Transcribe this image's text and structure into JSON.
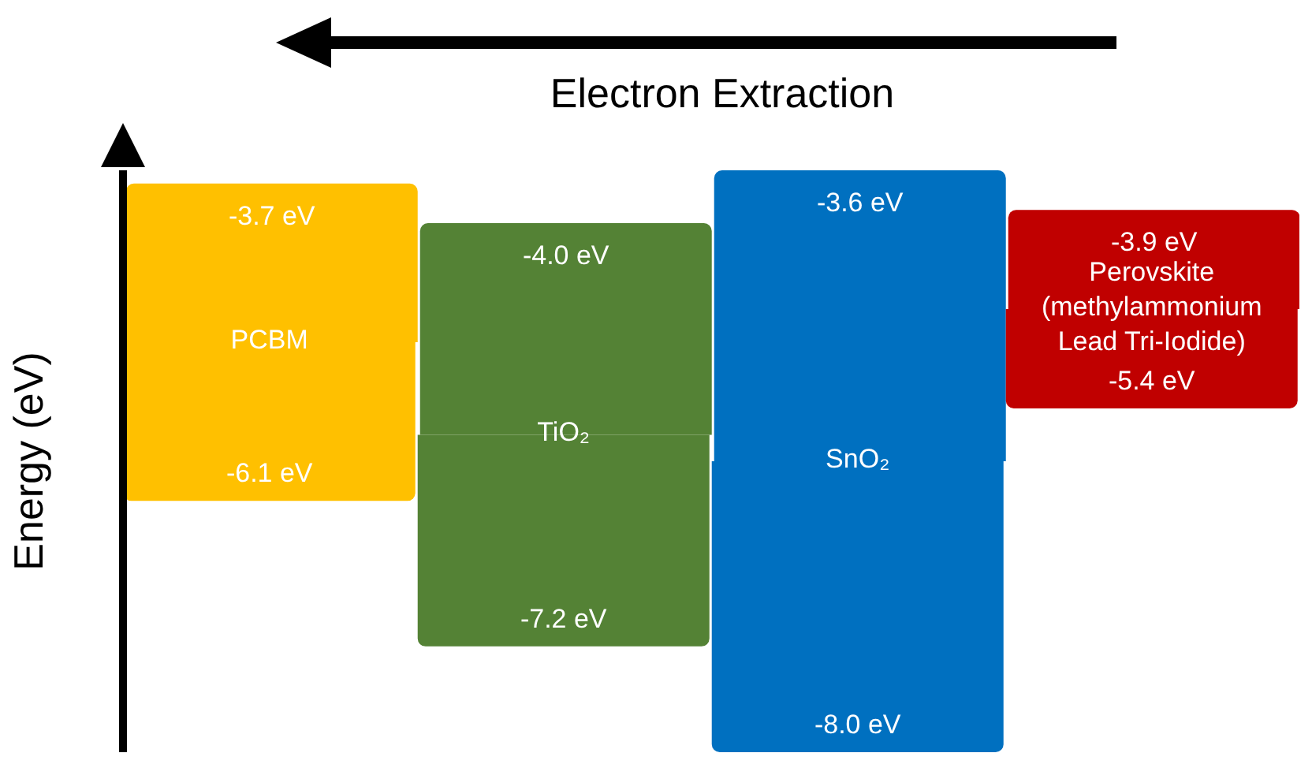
{
  "chart_data": {
    "type": "other",
    "ylabel": "Energy (eV)",
    "categories": [
      "PCBM",
      "TiO₂",
      "SnO₂",
      "Perovskite\n(methylammonium Lead Tri-Iodide)"
    ],
    "series": [
      {
        "values": [
          -3.7,
          -4.0,
          -3.6,
          -3.9
        ],
        "value_labels": [
          "-3.7 eV",
          "-4.0 eV",
          "-3.6 eV",
          "-3.9 eV"
        ],
        "colors": [
          "#ffc000",
          "#548235",
          "#0070c0",
          "#c00000"
        ]
      },
      {
        "values": [
          -6.1,
          -7.2,
          -8.0,
          -5.4
        ],
        "value_labels": [
          "-6.1 eV",
          "-7.2 eV",
          "-8.0 eV",
          "-5.4 eV"
        ],
        "colors": [
          "#ffc000",
          "#548235",
          "#0070c0",
          "#c00000"
        ]
      }
    ],
    "annotations": [
      "Electron Extraction"
    ]
  }
}
